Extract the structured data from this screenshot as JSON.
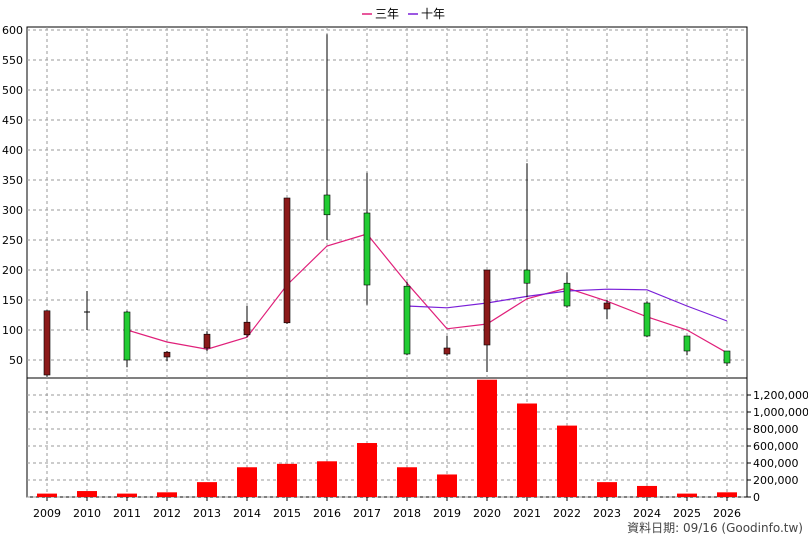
{
  "chart_data": {
    "type": "candlestick-with-volume",
    "legend": [
      {
        "name": "三年",
        "color": "#e0207a"
      },
      {
        "name": "十年",
        "color": "#7a20d8"
      }
    ],
    "x": [
      "2009",
      "2010",
      "2011",
      "2012",
      "2013",
      "2014",
      "2015",
      "2016",
      "2017",
      "2018",
      "2019",
      "2020",
      "2021",
      "2022",
      "2023",
      "2024",
      "2025",
      "2026"
    ],
    "price_axis": {
      "ylim": [
        20,
        605
      ],
      "ticks": [
        50,
        100,
        150,
        200,
        250,
        300,
        350,
        400,
        450,
        500,
        550,
        600
      ]
    },
    "volume_axis": {
      "ylim": [
        0,
        1400000
      ],
      "ticks": [
        "0",
        "200,000",
        "400,000",
        "600,000",
        "800,000",
        "1,000,000",
        "1,200,000"
      ],
      "tick_values": [
        0,
        200000,
        400000,
        600000,
        800000,
        1000000,
        1200000
      ]
    },
    "candles": [
      {
        "x": "2009",
        "open": 25,
        "high": 133,
        "low": 22,
        "close": 132
      },
      {
        "x": "2010",
        "open": 130,
        "high": 165,
        "low": 100,
        "close": 130
      },
      {
        "x": "2011",
        "open": 130,
        "high": 132,
        "low": 38,
        "close": 50
      },
      {
        "x": "2012",
        "open": 55,
        "high": 65,
        "low": 48,
        "close": 63
      },
      {
        "x": "2013",
        "open": 70,
        "high": 98,
        "low": 65,
        "close": 93
      },
      {
        "x": "2014",
        "open": 92,
        "high": 140,
        "low": 88,
        "close": 113
      },
      {
        "x": "2015",
        "open": 112,
        "high": 320,
        "low": 110,
        "close": 320
      },
      {
        "x": "2016",
        "open": 325,
        "high": 593,
        "low": 250,
        "close": 292
      },
      {
        "x": "2017",
        "open": 295,
        "high": 362,
        "low": 142,
        "close": 175
      },
      {
        "x": "2018",
        "open": 173,
        "high": 180,
        "low": 58,
        "close": 60
      },
      {
        "x": "2019",
        "open": 60,
        "high": 90,
        "low": 57,
        "close": 70
      },
      {
        "x": "2020",
        "open": 75,
        "high": 200,
        "low": 30,
        "close": 200
      },
      {
        "x": "2021",
        "open": 200,
        "high": 378,
        "low": 155,
        "close": 178
      },
      {
        "x": "2022",
        "open": 178,
        "high": 196,
        "low": 137,
        "close": 140
      },
      {
        "x": "2023",
        "open": 135,
        "high": 150,
        "low": 118,
        "close": 145
      },
      {
        "x": "2024",
        "open": 145,
        "high": 148,
        "low": 88,
        "close": 90
      },
      {
        "x": "2025",
        "open": 90,
        "high": 90,
        "low": 58,
        "close": 65
      },
      {
        "x": "2026",
        "open": 65,
        "high": 65,
        "low": 40,
        "close": 45
      }
    ],
    "series": [
      {
        "name": "三年",
        "x": [
          "2011",
          "2012",
          "2013",
          "2014",
          "2015",
          "2016",
          "2017",
          "2018",
          "2019",
          "2020",
          "2021",
          "2022",
          "2023",
          "2024",
          "2025",
          "2026"
        ],
        "values": [
          100,
          80,
          68,
          88,
          175,
          240,
          260,
          178,
          102,
          110,
          152,
          170,
          148,
          122,
          100,
          62
        ]
      },
      {
        "name": "十年",
        "x": [
          "2018",
          "2019",
          "2020",
          "2021",
          "2022",
          "2023",
          "2024",
          "2025",
          "2026"
        ],
        "values": [
          140,
          137,
          145,
          156,
          165,
          168,
          167,
          140,
          115
        ]
      }
    ],
    "volume": [
      40000,
      70000,
      40000,
      55000,
      175000,
      350000,
      390000,
      420000,
      635000,
      350000,
      265000,
      1380000,
      1100000,
      840000,
      175000,
      130000,
      40000,
      55000
    ],
    "grid": true
  },
  "credit": "資料日期: 09/16 (Goodinfo.tw)"
}
